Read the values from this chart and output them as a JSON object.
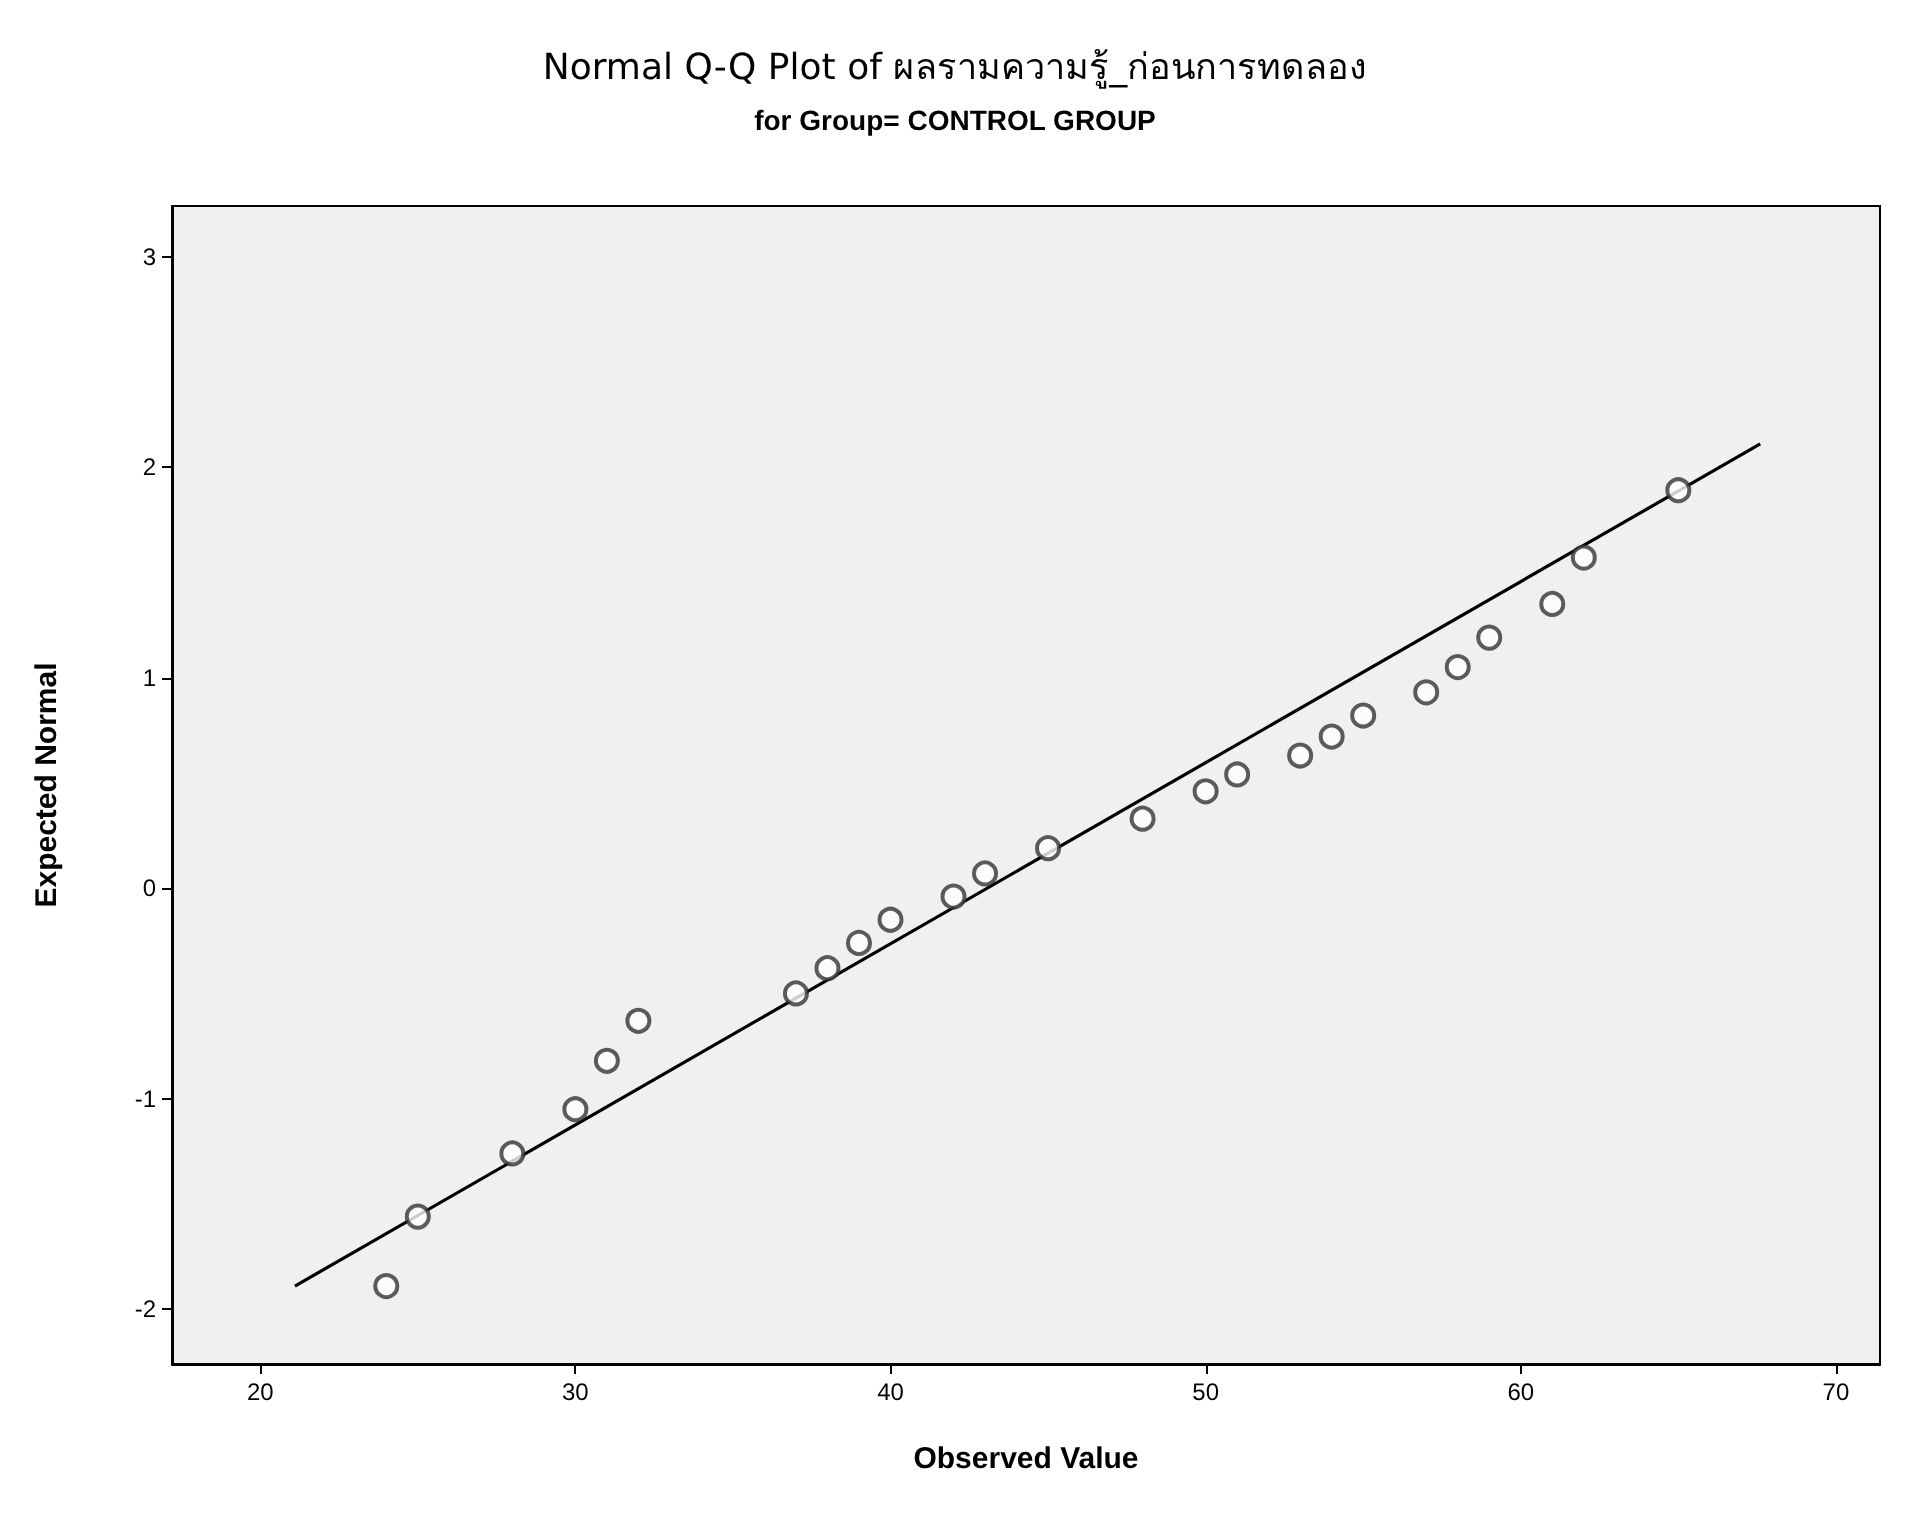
{
  "chart_data": {
    "type": "scatter",
    "title": "Normal Q-Q Plot of ผลรามความรู้_ก่อนการทดลอง",
    "subtitle": "for Group= CONTROL GROUP",
    "xlabel": "Observed Value",
    "ylabel": "Expected Normal",
    "grid": false,
    "xlim": [
      17.2,
      71.4
    ],
    "xticks": [
      20,
      30,
      40,
      50,
      60,
      70
    ],
    "ylim": [
      -2.26,
      3.24
    ],
    "yticks": [
      -2,
      -1,
      0,
      1,
      2,
      3
    ],
    "series": [
      {
        "marker": "circle",
        "color": "#333333",
        "x": [
          24,
          25,
          28,
          30,
          31,
          32,
          37,
          38,
          39,
          40,
          42,
          43,
          45,
          48,
          50,
          51,
          53,
          54,
          55,
          57,
          58,
          59,
          61,
          62,
          65
        ],
        "values": [
          -1.89,
          -1.56,
          -1.26,
          -1.05,
          -0.82,
          -0.63,
          -0.5,
          -0.38,
          -0.26,
          -0.15,
          -0.04,
          0.07,
          0.19,
          0.33,
          0.46,
          0.54,
          0.63,
          0.72,
          0.82,
          0.93,
          1.05,
          1.19,
          1.35,
          1.57,
          1.89
        ]
      },
      {
        "type": "line",
        "marker": "none",
        "color": "#000000",
        "x": [
          21.1,
          67.6
        ],
        "values": [
          -1.89,
          2.11
        ]
      }
    ]
  }
}
